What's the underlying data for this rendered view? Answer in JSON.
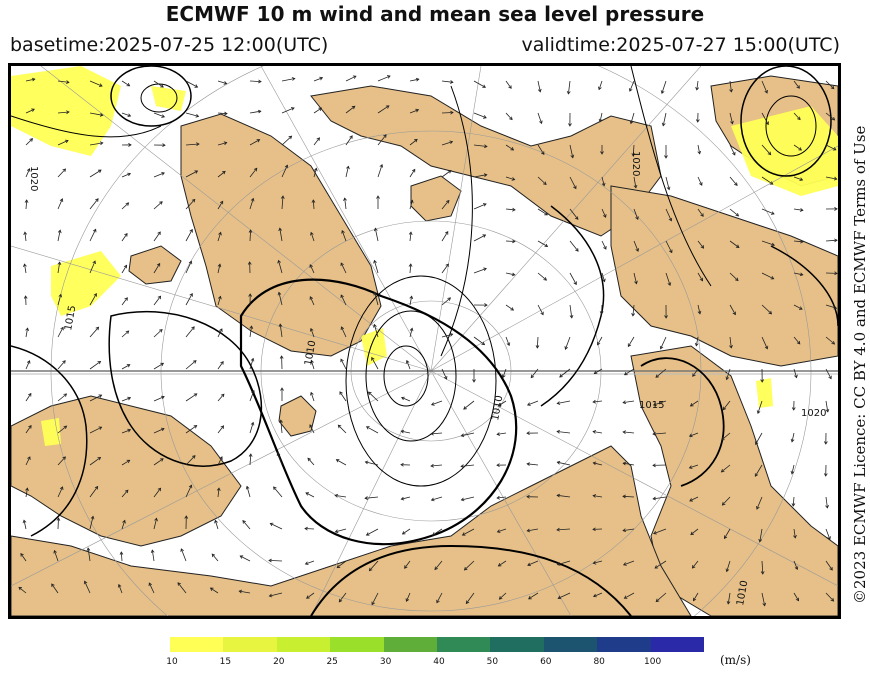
{
  "title": "ECMWF 10 m wind and mean sea level pressure",
  "basetime": "basetime:2025-07-25 12:00(UTC)",
  "validtime": "validtime:2025-07-27 15:00(UTC)",
  "license": "©2023 ECMWF Licence: CC BY 4.0 and ECMWF Terms of Use",
  "isobar_labels": [
    "1020",
    "1020",
    "1015",
    "1010",
    "1010",
    "1015",
    "1020",
    "1010"
  ],
  "colorbar": {
    "unit": "(m/s)",
    "ticks": [
      "10",
      "15",
      "20",
      "25",
      "30",
      "40",
      "50",
      "60",
      "80",
      "100"
    ],
    "colors": [
      "#ffff55",
      "#e8f540",
      "#c8f030",
      "#9ae02a",
      "#5fae3a",
      "#2f8a55",
      "#1f6e5f",
      "#1c5470",
      "#1e3c8a",
      "#2a2aa8"
    ]
  },
  "colors": {
    "land": "#e6c088",
    "sea": "#ffffff",
    "wind_light": "#ffff55",
    "isobar": "#000000",
    "grid": "#888888"
  }
}
